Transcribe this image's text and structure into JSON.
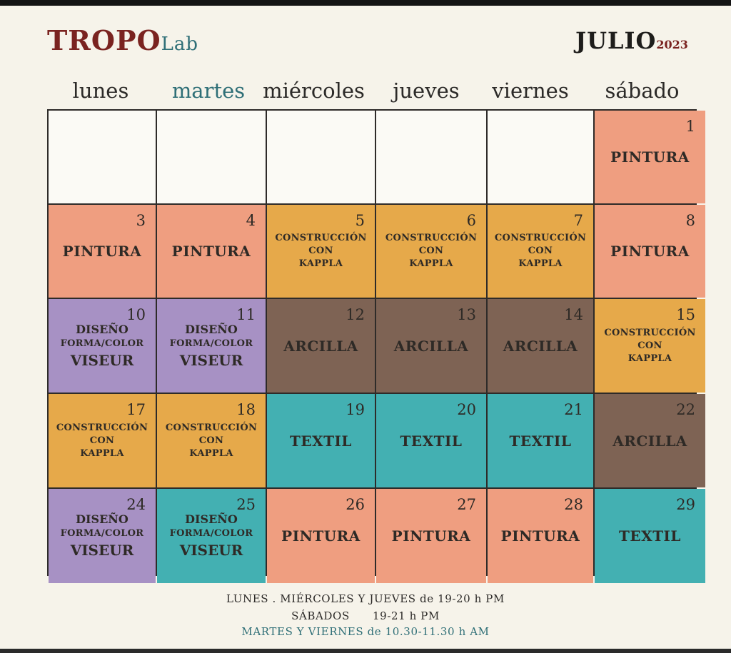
{
  "header": {
    "brand_main": "TROPO",
    "brand_sub": "Lab",
    "month": "JULIO",
    "year": "2023"
  },
  "weekdays": [
    "lunes",
    "martes",
    "miércoles",
    "jueves",
    "viernes",
    "sábado"
  ],
  "activities": {
    "pintura": "PINTURA",
    "construccion": "CONSTRUCCIÓN",
    "con": "CON",
    "kappla": "KAPPLA",
    "diseno": "DISEÑO",
    "forma_color": "FORMA/COLOR",
    "viseur": "VISEUR",
    "arcilla": "ARCILLA",
    "textil": "TEXTIL"
  },
  "days": {
    "d1": "1",
    "d3": "3",
    "d4": "4",
    "d5": "5",
    "d6": "6",
    "d7": "7",
    "d8": "8",
    "d10": "10",
    "d11": "11",
    "d12": "12",
    "d13": "13",
    "d14": "14",
    "d15": "15",
    "d17": "17",
    "d18": "18",
    "d19": "19",
    "d20": "20",
    "d21": "21",
    "d22": "22",
    "d24": "24",
    "d25": "25",
    "d26": "26",
    "d27": "27",
    "d28": "28",
    "d29": "29"
  },
  "schedule": {
    "line1": "LUNES . MIÉRCOLES Y JUEVES de 19-20 h PM",
    "line2": "SÁBADOS      19-21 h PM",
    "line3": "MARTES Y VIERNES de 10.30-11.30 h AM"
  },
  "colors": {
    "pintura": "#ef9e80",
    "kappla": "#e6a94a",
    "diseno": "#a791c4",
    "arcilla": "#7e6354",
    "textil": "#43b0b2"
  }
}
